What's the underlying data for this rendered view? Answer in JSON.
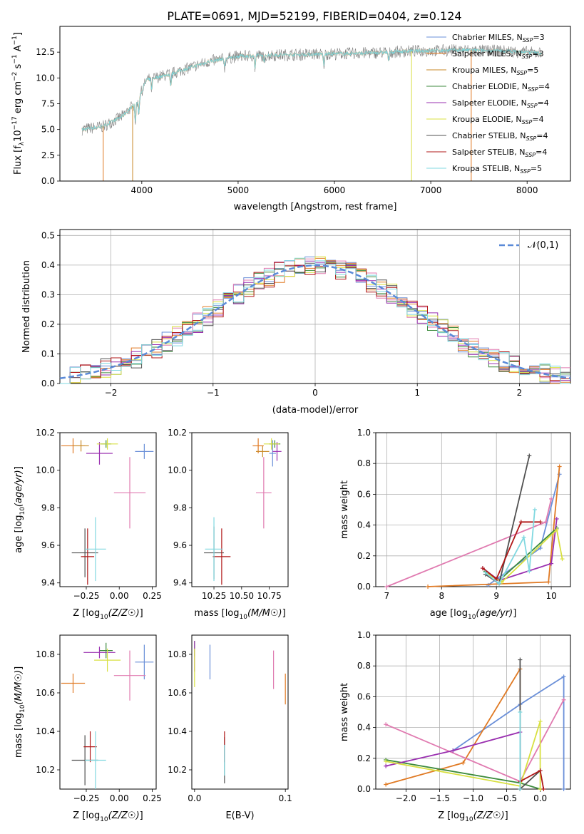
{
  "figure": {
    "title": "PLATE=0691, MJD=52199, FIBERID=0404, z=0.124"
  },
  "models": [
    {
      "name": "Chabrier MILES, N_SSP=3",
      "base": "Chabrier MILES, N",
      "sub": "SSP",
      "tail": "=3",
      "color": "#6a8fd8"
    },
    {
      "name": "Salpeter MILES, N_SSP=3",
      "base": "Salpeter MILES, N",
      "sub": "SSP",
      "tail": "=3",
      "color": "#e07a24"
    },
    {
      "name": "Kroupa MILES, N_SSP=5",
      "base": "Kroupa MILES, N",
      "sub": "SSP",
      "tail": "=5",
      "color": "#c98a28"
    },
    {
      "name": "Chabrier ELODIE, N_SSP=4",
      "base": "Chabrier ELODIE, N",
      "sub": "SSP",
      "tail": "=4",
      "color": "#3c8a3c"
    },
    {
      "name": "Salpeter ELODIE, N_SSP=4",
      "base": "Salpeter ELODIE, N",
      "sub": "SSP",
      "tail": "=4",
      "color": "#9a30b0"
    },
    {
      "name": "Kroupa ELODIE, N_SSP=4",
      "base": "Kroupa ELODIE, N",
      "sub": "SSP",
      "tail": "=4",
      "color": "#d8e040"
    },
    {
      "name": "Chabrier STELIB, N_SSP=4",
      "base": "Chabrier STELIB, N",
      "sub": "SSP",
      "tail": "=4",
      "color": "#505050"
    },
    {
      "name": "Salpeter STELIB, N_SSP=4",
      "base": "Salpeter STELIB, N",
      "sub": "SSP",
      "tail": "=4",
      "color": "#b01818"
    },
    {
      "name": "Kroupa STELIB, N_SSP=5",
      "base": "Kroupa STELIB, N",
      "sub": "SSP",
      "tail": "=5",
      "color": "#80d8e0"
    }
  ],
  "chart_data": [
    {
      "id": "spectrum",
      "type": "line",
      "title": "PLATE=0691, MJD=52199, FIBERID=0404, z=0.124",
      "xlabel": "wavelength [Angstrom, rest frame]",
      "ylabel_parts": [
        "Flux [f",
        "λ",
        "10",
        "−17",
        " erg cm",
        "−2",
        " s",
        "−1",
        " A",
        "−1",
        "]"
      ],
      "xlim": [
        3150,
        8450
      ],
      "ylim": [
        0,
        15
      ],
      "xticks": [
        4000,
        5000,
        6000,
        7000,
        8000
      ],
      "yticks": [
        0.0,
        2.5,
        5.0,
        7.5,
        10.0,
        12.5
      ],
      "ytick_labels": [
        "0.0",
        "2.5",
        "5.0",
        "7.5",
        "10.0",
        "12.5"
      ],
      "data_color": "#808080",
      "x_range": [
        3380,
        8150
      ],
      "continuum": {
        "x": [
          3380,
          3600,
          3800,
          3950,
          4050,
          4300,
          4500,
          4700,
          5000,
          5300,
          5800,
          6300,
          6800,
          7300,
          7800,
          8150
        ],
        "y": [
          5.0,
          5.3,
          6.3,
          7.7,
          9.8,
          10.4,
          11.0,
          11.6,
          12.1,
          12.2,
          12.3,
          12.4,
          12.6,
          12.7,
          12.6,
          12.4
        ]
      },
      "legend_position": "upper right"
    },
    {
      "id": "residuals",
      "type": "step",
      "xlabel": "(data-model)/error",
      "ylabel": "Normed distribution",
      "xlim": [
        -2.5,
        2.5
      ],
      "ylim": [
        0,
        0.52
      ],
      "xticks": [
        -2,
        -1,
        0,
        1,
        2
      ],
      "xtick_labels": [
        "−2",
        "−1",
        "0",
        "1",
        "2"
      ],
      "yticks": [
        0.0,
        0.1,
        0.2,
        0.3,
        0.4,
        0.5
      ],
      "ytick_labels": [
        "0.0",
        "0.1",
        "0.2",
        "0.3",
        "0.4",
        "0.5"
      ],
      "grid": true,
      "bin_width": 0.1,
      "gaussian": {
        "label": "𝒩(0,1)",
        "color": "#5a8ad8",
        "style": "dashed"
      },
      "legend_position": "upper right"
    },
    {
      "id": "age-vs-Z",
      "type": "errorbar",
      "xlabel": "Z [log10(Z/Z☉)]",
      "ylabel": "age [log10(age/yr)]",
      "xlim": [
        -0.45,
        0.28
      ],
      "ylim": [
        9.38,
        10.2
      ],
      "xticks": [
        -0.25,
        0.0,
        0.25
      ],
      "xtick_labels": [
        "−0.25",
        "0.00",
        "0.25"
      ],
      "yticks": [
        9.4,
        9.6,
        9.8,
        10.0,
        10.2
      ],
      "ytick_labels": [
        "9.4",
        "9.6",
        "9.8",
        "10.0",
        "10.2"
      ],
      "points": [
        {
          "m": 0,
          "x": 0.19,
          "y": 10.1,
          "xe": 0.07,
          "ye": 0.04
        },
        {
          "m": 1,
          "x": -0.35,
          "y": 10.13,
          "xe": 0.09,
          "ye": 0.04
        },
        {
          "m": 2,
          "x": -0.29,
          "y": 10.13,
          "xe": 0.06,
          "ye": 0.03
        },
        {
          "m": 3,
          "x": -0.1,
          "y": 10.14,
          "xe": 0.04,
          "ye": 0.02
        },
        {
          "m": 4,
          "x": -0.15,
          "y": 10.09,
          "xe": 0.1,
          "ye": 0.06
        },
        {
          "m": 5,
          "x": -0.09,
          "y": 10.14,
          "xe": 0.08,
          "ye": 0.03
        },
        {
          "m": 6,
          "x": -0.26,
          "y": 9.56,
          "xe": 0.1,
          "ye": 0.13
        },
        {
          "m": 7,
          "x": -0.24,
          "y": 9.54,
          "xe": 0.05,
          "ye": 0.15
        },
        {
          "m": 8,
          "x": -0.18,
          "y": 9.58,
          "xe": 0.08,
          "ye": 0.17
        },
        {
          "m": 2,
          "x": 0.08,
          "y": 9.88,
          "xe": 0.12,
          "ye": 0.19,
          "altColor": "#e07ab0"
        }
      ]
    },
    {
      "id": "age-vs-mass",
      "type": "errorbar",
      "xlabel": "mass [log10(M/M☉)]",
      "ylabel": "",
      "xlim": [
        10.05,
        10.92
      ],
      "ylim": [
        9.38,
        10.2
      ],
      "xticks": [
        10.25,
        10.5,
        10.75
      ],
      "xtick_labels": [
        "10.25",
        "10.50",
        "10.75"
      ],
      "yticks": [
        9.4,
        9.6,
        9.8,
        10.0,
        10.2
      ],
      "ytick_labels": [
        "9.4",
        "9.6",
        "9.8",
        "10.0",
        "10.2"
      ],
      "points": [
        {
          "m": 0,
          "x": 10.78,
          "y": 10.09,
          "xe": 0.03,
          "ye": 0.07
        },
        {
          "m": 1,
          "x": 10.65,
          "y": 10.13,
          "xe": 0.05,
          "ye": 0.04
        },
        {
          "m": 2,
          "x": 10.69,
          "y": 10.1,
          "xe": 0.06,
          "ye": 0.03
        },
        {
          "m": 3,
          "x": 10.8,
          "y": 10.14,
          "xe": 0.05,
          "ye": 0.02
        },
        {
          "m": 4,
          "x": 10.82,
          "y": 10.1,
          "xe": 0.04,
          "ye": 0.05
        },
        {
          "m": 5,
          "x": 10.77,
          "y": 10.14,
          "xe": 0.07,
          "ye": 0.03
        },
        {
          "m": 6,
          "x": 10.25,
          "y": 9.56,
          "xe": 0.09,
          "ye": 0.14
        },
        {
          "m": 7,
          "x": 10.32,
          "y": 9.54,
          "xe": 0.08,
          "ye": 0.15
        },
        {
          "m": 8,
          "x": 10.25,
          "y": 9.58,
          "xe": 0.08,
          "ye": 0.17
        },
        {
          "m": 2,
          "x": 10.7,
          "y": 9.88,
          "xe": 0.07,
          "ye": 0.19,
          "altColor": "#e07ab0"
        }
      ]
    },
    {
      "id": "mass-weight-vs-age",
      "type": "line",
      "xlabel": "age [log10(age/yr)]",
      "ylabel": "mass weight",
      "xlim": [
        6.8,
        10.35
      ],
      "ylim": [
        0,
        1
      ],
      "xticks": [
        7,
        8,
        9,
        10
      ],
      "xtick_labels": [
        "7",
        "8",
        "9",
        "10"
      ],
      "yticks": [
        0.0,
        0.2,
        0.4,
        0.6,
        0.8,
        1.0
      ],
      "ytick_labels": [
        "0.0",
        "0.2",
        "0.4",
        "0.6",
        "0.8",
        "1.0"
      ],
      "grid": true,
      "series": [
        {
          "m": 0,
          "x": [
            8.85,
            9.8,
            10.15
          ],
          "y": [
            0.01,
            0.25,
            0.73
          ]
        },
        {
          "m": 1,
          "x": [
            7.75,
            9.95,
            10.15
          ],
          "y": [
            0.0,
            0.03,
            0.78
          ]
        },
        {
          "m": 2,
          "x": [
            7.0,
            9.9,
            10.0
          ],
          "y": [
            0.0,
            0.42,
            0.57
          ],
          "altColor": "#e07ab0"
        },
        {
          "m": 3,
          "x": [
            8.8,
            9.05,
            10.1
          ],
          "y": [
            0.1,
            0.04,
            0.38
          ]
        },
        {
          "m": 4,
          "x": [
            8.75,
            9.05,
            10.0,
            10.1
          ],
          "y": [
            0.12,
            0.04,
            0.15,
            0.44
          ]
        },
        {
          "m": 5,
          "x": [
            8.85,
            9.1,
            10.1,
            10.2
          ],
          "y": [
            0.08,
            0.03,
            0.37,
            0.18
          ]
        },
        {
          "m": 6,
          "x": [
            8.8,
            9.05,
            9.6
          ],
          "y": [
            0.08,
            0.02,
            0.85
          ]
        },
        {
          "m": 7,
          "x": [
            8.75,
            9.0,
            9.45,
            9.8
          ],
          "y": [
            0.12,
            0.05,
            0.42,
            0.42
          ]
        },
        {
          "m": 8,
          "x": [
            8.8,
            9.05,
            9.5,
            9.6,
            9.7
          ],
          "y": [
            0.09,
            0.02,
            0.32,
            0.1,
            0.5
          ]
        }
      ]
    },
    {
      "id": "mass-vs-Z",
      "type": "errorbar",
      "xlabel": "Z [log10(Z/Z☉)]",
      "ylabel": "mass [log10(M/M☉)]",
      "xlim": [
        -0.45,
        0.28
      ],
      "ylim": [
        10.1,
        10.9
      ],
      "xticks": [
        -0.25,
        0.0,
        0.25
      ],
      "xtick_labels": [
        "−0.25",
        "0.00",
        "0.25"
      ],
      "yticks": [
        10.2,
        10.4,
        10.6,
        10.8
      ],
      "ytick_labels": [
        "10.2",
        "10.4",
        "10.6",
        "10.8"
      ],
      "points": [
        {
          "m": 0,
          "x": 0.19,
          "y": 10.76,
          "xe": 0.07,
          "ye": 0.09
        },
        {
          "m": 1,
          "x": -0.35,
          "y": 10.65,
          "xe": 0.09,
          "ye": 0.05
        },
        {
          "m": 3,
          "x": -0.1,
          "y": 10.82,
          "xe": 0.05,
          "ye": 0.04
        },
        {
          "m": 4,
          "x": -0.15,
          "y": 10.81,
          "xe": 0.12,
          "ye": 0.03
        },
        {
          "m": 5,
          "x": -0.09,
          "y": 10.77,
          "xe": 0.1,
          "ye": 0.06
        },
        {
          "m": 6,
          "x": -0.26,
          "y": 10.25,
          "xe": 0.1,
          "ye": 0.13
        },
        {
          "m": 7,
          "x": -0.22,
          "y": 10.32,
          "xe": 0.05,
          "ye": 0.08
        },
        {
          "m": 8,
          "x": -0.18,
          "y": 10.25,
          "xe": 0.08,
          "ye": 0.15
        },
        {
          "m": 2,
          "x": 0.08,
          "y": 10.69,
          "xe": 0.12,
          "ye": 0.13,
          "altColor": "#e07ab0"
        }
      ]
    },
    {
      "id": "mass-vs-ebv",
      "type": "errorbar",
      "xlabel": "E(B-V)",
      "ylabel": "",
      "xlim": [
        -0.003,
        0.103
      ],
      "ylim": [
        10.1,
        10.9
      ],
      "xticks": [
        0.0,
        0.1
      ],
      "xtick_labels": [
        "0.0",
        "0.1"
      ],
      "yticks": [
        10.2,
        10.4,
        10.6,
        10.8
      ],
      "ytick_labels": [
        "10.2",
        "10.4",
        "10.6",
        "10.8"
      ],
      "points": [
        {
          "m": 0,
          "x": 0.017,
          "y": 10.76,
          "xe": 0,
          "ye": 0.09
        },
        {
          "m": 1,
          "x": 0.1,
          "y": 10.62,
          "xe": 0,
          "ye": 0.08
        },
        {
          "m": 3,
          "x": 0.0,
          "y": 10.83,
          "xe": 0,
          "ye": 0.04
        },
        {
          "m": 4,
          "x": 0.0,
          "y": 10.79,
          "xe": 0,
          "ye": 0.08
        },
        {
          "m": 5,
          "x": 0.0,
          "y": 10.73,
          "xe": 0,
          "ye": 0.1
        },
        {
          "m": 6,
          "x": 0.033,
          "y": 10.25,
          "xe": 0,
          "ye": 0.12
        },
        {
          "m": 7,
          "x": 0.033,
          "y": 10.32,
          "xe": 0,
          "ye": 0.08
        },
        {
          "m": 8,
          "x": 0.033,
          "y": 10.25,
          "xe": 0,
          "ye": 0.08
        },
        {
          "m": 2,
          "x": 0.087,
          "y": 10.72,
          "xe": 0,
          "ye": 0.1,
          "altColor": "#e07ab0"
        }
      ]
    },
    {
      "id": "mass-weight-vs-Z",
      "type": "line",
      "xlabel": "Z [log10(Z/Z☉)]",
      "ylabel": "mass weight",
      "xlim": [
        -2.45,
        0.45
      ],
      "ylim": [
        0,
        1
      ],
      "xticks": [
        -2.0,
        -1.5,
        -1.0,
        -0.5,
        0.0
      ],
      "xtick_labels": [
        "−2.0",
        "−1.5",
        "−1.0",
        "−0.5",
        "0.0"
      ],
      "yticks": [
        0.0,
        0.2,
        0.4,
        0.6,
        0.8,
        1.0
      ],
      "ytick_labels": [
        "0.0",
        "0.2",
        "0.4",
        "0.6",
        "0.8",
        "1.0"
      ],
      "grid": true,
      "series": [
        {
          "m": 0,
          "x": [
            -1.3,
            -0.3,
            0.35,
            0.35
          ],
          "y": [
            0.25,
            0.55,
            0.73,
            0.0
          ]
        },
        {
          "m": 1,
          "x": [
            -2.3,
            -1.15,
            -0.3,
            -0.3
          ],
          "y": [
            0.03,
            0.17,
            0.78,
            0.0
          ]
        },
        {
          "m": 2,
          "x": [
            -2.3,
            -0.3,
            0.35
          ],
          "y": [
            0.42,
            0.05,
            0.58
          ],
          "altColor": "#e07ab0"
        },
        {
          "m": 3,
          "x": [
            -2.3,
            -0.3,
            0.0
          ],
          "y": [
            0.19,
            0.04,
            0.0
          ]
        },
        {
          "m": 4,
          "x": [
            -2.3,
            -1.3,
            -0.3,
            -0.3
          ],
          "y": [
            0.15,
            0.25,
            0.37,
            0.0
          ]
        },
        {
          "m": 5,
          "x": [
            -2.3,
            -0.3,
            0.0,
            0.0
          ],
          "y": [
            0.18,
            0.02,
            0.44,
            0.0
          ]
        },
        {
          "m": 6,
          "x": [
            -0.3,
            -0.3,
            0.0
          ],
          "y": [
            0.84,
            0.0,
            0.12
          ]
        },
        {
          "m": 7,
          "x": [
            -0.3,
            0.0,
            0.05
          ],
          "y": [
            0.05,
            0.12,
            0.0
          ]
        },
        {
          "m": 8,
          "x": [
            -0.3,
            -0.3
          ],
          "y": [
            0.5,
            0.0
          ]
        }
      ]
    }
  ]
}
